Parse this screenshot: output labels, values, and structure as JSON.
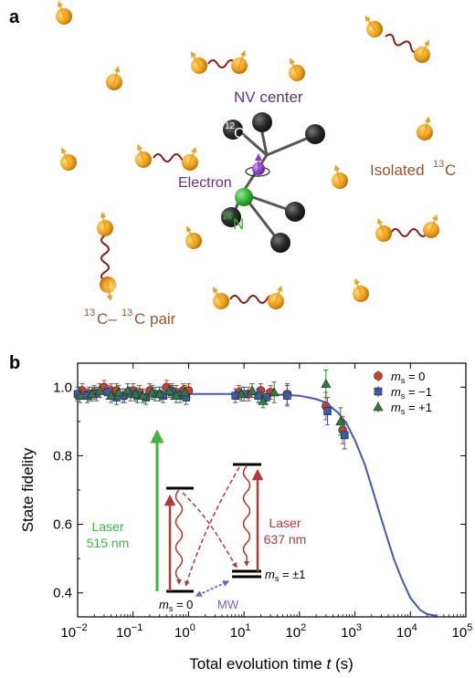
{
  "panel_a": {
    "label": "a",
    "nv_center": "NV center",
    "electron": "Electron",
    "c12_sup": "12",
    "c12_main": "C",
    "n14_sup": "14",
    "n14_main": "N",
    "isolated_text": "Isolated ",
    "isolated_sup": "13",
    "isolated_main": "C",
    "pair_sup1": "13",
    "pair_mid": "C–",
    "pair_sup2": "13",
    "pair_end": "C pair",
    "colors": {
      "spin": "#f2a21c",
      "wavy": "#8b1a1a",
      "nv_label": "#6a2c86",
      "electron": "#8a3fc0",
      "nitrogen": "#2db52d",
      "carbon12": "#2b2b2b",
      "c13_label": "#a0522d"
    }
  },
  "panel_b": {
    "label": "b",
    "legend": [
      {
        "m": "m",
        "sub": "s",
        "eq": " = 0",
        "color": "#d23c2a",
        "marker": "circle"
      },
      {
        "m": "m",
        "sub": "s",
        "eq": " = −1",
        "color": "#3b5ba8",
        "marker": "square"
      },
      {
        "m": "m",
        "sub": "s",
        "eq": " = +1",
        "color": "#2e7d3a",
        "marker": "triangle"
      }
    ],
    "inset": {
      "laser515_line1": "Laser",
      "laser515_line2": "515 nm",
      "laser637_line1": "Laser",
      "laser637_line2": "637 nm",
      "ms0_m": "m",
      "ms0_sub": "s",
      "ms0_eq": " = 0",
      "ms1_m": "m",
      "ms1_sub": "s",
      "ms1_eq": " = ±1",
      "mw": "MW",
      "colors": {
        "laser515": "#3cb93c",
        "laser637": "#b03a3a",
        "mw": "#7d5cc0"
      }
    }
  },
  "chart_data": {
    "type": "scatter",
    "title": "",
    "xlabel_main": "Total evolution time ",
    "xlabel_var": "t",
    "xlabel_unit": " (s)",
    "ylabel": "State fidelity",
    "x_scale": "log",
    "xlim": [
      0.01,
      100000
    ],
    "ylim": [
      0.33,
      1.07
    ],
    "x_tick_exponents": [
      -2,
      -1,
      0,
      1,
      2,
      3,
      4,
      5
    ],
    "x_tick_base": "10",
    "y_ticks": [
      "0.4",
      "0.6",
      "0.8",
      "1.0"
    ],
    "y_tick_values": [
      0.4,
      0.6,
      0.8,
      1.0
    ],
    "grid": false,
    "legend_position": "top-right",
    "fit_curve": {
      "color": "#4457b8",
      "x": [
        0.01,
        0.1,
        1,
        10,
        50,
        100,
        200,
        300,
        500,
        700,
        1000,
        1500,
        2000,
        3000,
        5000,
        7000,
        10000,
        15000,
        20000,
        30000
      ],
      "y": [
        0.98,
        0.98,
        0.98,
        0.98,
        0.978,
        0.975,
        0.965,
        0.955,
        0.925,
        0.895,
        0.845,
        0.775,
        0.71,
        0.615,
        0.5,
        0.44,
        0.385,
        0.35,
        0.338,
        0.333
      ]
    },
    "series": [
      {
        "name": "m_s = 0",
        "color": "#d23c2a",
        "marker": "circle",
        "x": [
          0.012,
          0.016,
          0.02,
          0.03,
          0.04,
          0.05,
          0.07,
          0.1,
          0.13,
          0.2,
          0.3,
          0.4,
          0.5,
          0.6,
          0.8,
          1.0,
          8,
          12,
          20,
          30,
          60,
          300,
          600
        ],
        "y": [
          0.99,
          0.98,
          0.985,
          1.0,
          0.99,
          0.99,
          0.975,
          0.99,
          0.985,
          0.99,
          0.98,
          1.0,
          0.99,
          0.985,
          0.99,
          0.99,
          0.985,
          0.98,
          0.99,
          0.985,
          0.98,
          0.945,
          0.875
        ],
        "err": [
          0.02,
          0.02,
          0.02,
          0.02,
          0.02,
          0.02,
          0.02,
          0.02,
          0.02,
          0.02,
          0.02,
          0.02,
          0.02,
          0.02,
          0.02,
          0.02,
          0.02,
          0.02,
          0.02,
          0.02,
          0.03,
          0.04,
          0.04
        ]
      },
      {
        "name": "m_s = −1",
        "color": "#3b5ba8",
        "marker": "square",
        "x": [
          0.01,
          0.015,
          0.022,
          0.035,
          0.05,
          0.065,
          0.09,
          0.12,
          0.17,
          0.25,
          0.35,
          0.5,
          0.7,
          0.9,
          7,
          10,
          18,
          25,
          60,
          320,
          650
        ],
        "y": [
          0.98,
          0.975,
          0.98,
          0.985,
          0.97,
          0.975,
          0.98,
          0.975,
          0.97,
          0.98,
          0.975,
          0.985,
          0.975,
          0.97,
          0.975,
          0.98,
          0.975,
          0.97,
          0.975,
          0.93,
          0.86
        ],
        "err": [
          0.02,
          0.02,
          0.02,
          0.02,
          0.02,
          0.02,
          0.02,
          0.02,
          0.02,
          0.02,
          0.02,
          0.02,
          0.02,
          0.02,
          0.02,
          0.02,
          0.02,
          0.02,
          0.03,
          0.04,
          0.04
        ]
      },
      {
        "name": "m_s = +1",
        "color": "#2e7d3a",
        "marker": "triangle",
        "x": [
          0.011,
          0.018,
          0.025,
          0.04,
          0.055,
          0.08,
          0.11,
          0.15,
          0.22,
          0.3,
          0.45,
          0.6,
          0.85,
          9,
          14,
          22,
          35,
          300,
          550
        ],
        "y": [
          0.975,
          0.98,
          0.99,
          0.975,
          0.985,
          0.99,
          0.98,
          0.975,
          0.985,
          0.98,
          0.99,
          0.975,
          0.985,
          0.98,
          0.99,
          0.96,
          0.985,
          1.01,
          0.9
        ],
        "err": [
          0.02,
          0.02,
          0.02,
          0.02,
          0.02,
          0.02,
          0.02,
          0.02,
          0.02,
          0.02,
          0.02,
          0.02,
          0.02,
          0.02,
          0.02,
          0.02,
          0.03,
          0.04,
          0.04
        ]
      }
    ]
  }
}
